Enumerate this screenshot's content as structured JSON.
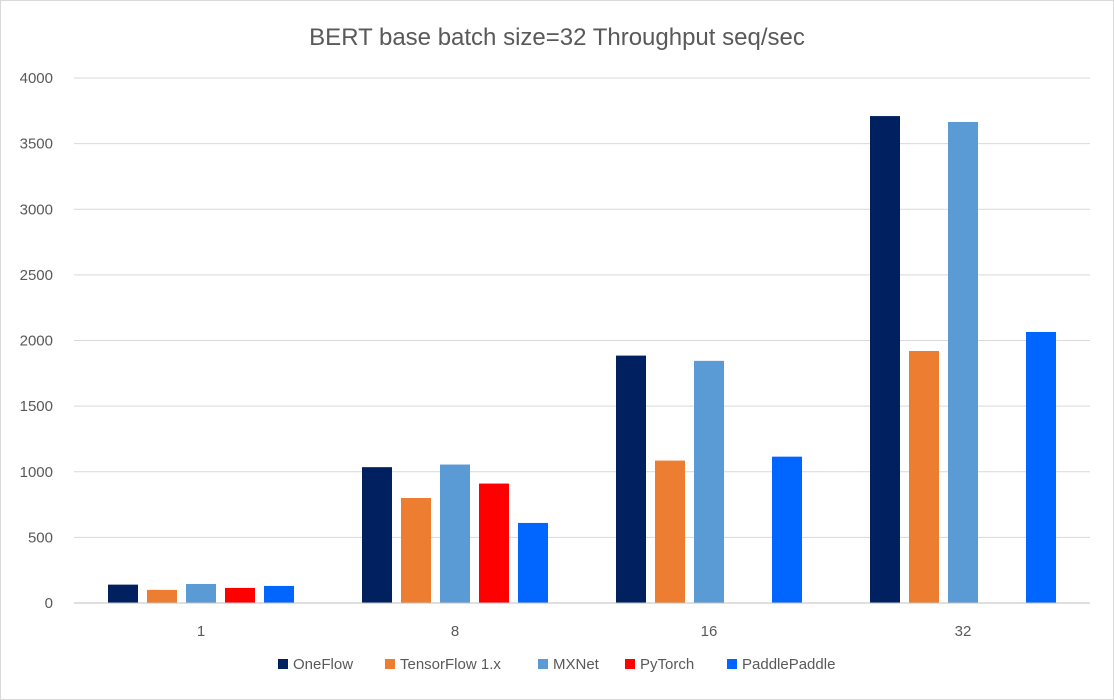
{
  "chart_data": {
    "type": "bar",
    "title": "BERT base batch size=32 Throughput seq/sec",
    "xlabel": "",
    "ylabel": "",
    "categories": [
      "1",
      "8",
      "16",
      "32"
    ],
    "ylim": [
      0,
      4000
    ],
    "yticks": [
      0,
      500,
      1000,
      1500,
      2000,
      2500,
      3000,
      3500,
      4000
    ],
    "grid": true,
    "legend_position": "bottom",
    "series": [
      {
        "name": "OneFlow",
        "color": "#002060",
        "values": [
          140,
          1035,
          1885,
          3710
        ]
      },
      {
        "name": "TensorFlow 1.x",
        "color": "#ed7d31",
        "values": [
          100,
          800,
          1085,
          1920
        ]
      },
      {
        "name": "MXNet",
        "color": "#5b9bd5",
        "values": [
          145,
          1055,
          1845,
          3665
        ]
      },
      {
        "name": "PyTorch",
        "color": "#ff0000",
        "values": [
          115,
          910,
          null,
          null
        ]
      },
      {
        "name": "PaddlePaddle",
        "color": "#0066ff",
        "values": [
          130,
          610,
          1115,
          2065
        ]
      }
    ]
  }
}
